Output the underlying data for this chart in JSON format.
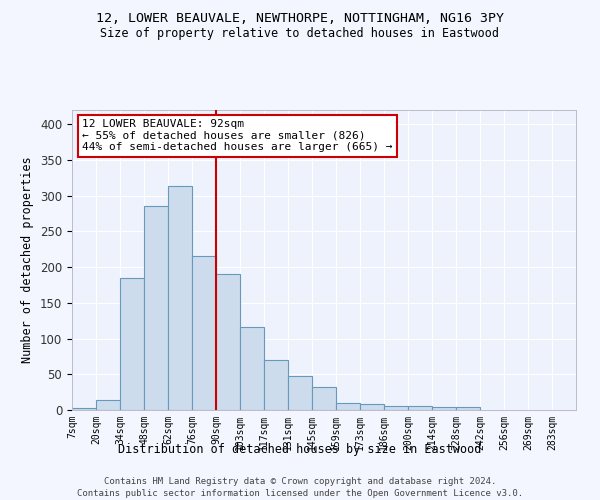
{
  "title_line1": "12, LOWER BEAUVALE, NEWTHORPE, NOTTINGHAM, NG16 3PY",
  "title_line2": "Size of property relative to detached houses in Eastwood",
  "xlabel": "Distribution of detached houses by size in Eastwood",
  "ylabel": "Number of detached properties",
  "tick_labels": [
    "7sqm",
    "20sqm",
    "34sqm",
    "48sqm",
    "62sqm",
    "76sqm",
    "90sqm",
    "103sqm",
    "117sqm",
    "131sqm",
    "145sqm",
    "159sqm",
    "173sqm",
    "186sqm",
    "200sqm",
    "214sqm",
    "228sqm",
    "242sqm",
    "256sqm",
    "269sqm",
    "283sqm"
  ],
  "bar_values": [
    3,
    14,
    185,
    285,
    313,
    215,
    190,
    116,
    70,
    47,
    32,
    10,
    8,
    6,
    5,
    4,
    4
  ],
  "bar_color": "#ccdcec",
  "bar_edge_color": "#6699bb",
  "vline_color": "#cc0000",
  "annotation_title": "12 LOWER BEAUVALE: 92sqm",
  "annotation_line2": "← 55% of detached houses are smaller (826)",
  "annotation_line3": "44% of semi-detached houses are larger (665) →",
  "annotation_box_color": "#cc0000",
  "ylim": [
    0,
    420
  ],
  "yticks": [
    0,
    50,
    100,
    150,
    200,
    250,
    300,
    350,
    400
  ],
  "footer_line1": "Contains HM Land Registry data © Crown copyright and database right 2024.",
  "footer_line2": "Contains public sector information licensed under the Open Government Licence v3.0.",
  "bg_color": "#eef2fc",
  "grid_color": "#ffffff",
  "fig_bg_color": "#f4f6ff"
}
